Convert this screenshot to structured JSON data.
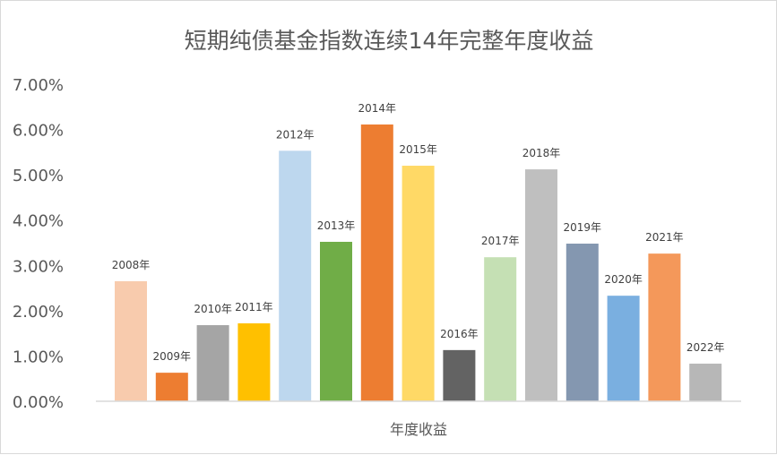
{
  "chart_data": {
    "type": "bar",
    "title": "短期纯债基金指数连续14年完整年度收益",
    "xlabel": "年度收益",
    "ylabel": "",
    "ylim": [
      0,
      7
    ],
    "yticks": [
      "0.00%",
      "1.00%",
      "2.00%",
      "3.00%",
      "4.00%",
      "5.00%",
      "6.00%",
      "7.00%"
    ],
    "grid": false,
    "legend": "none",
    "categories": [
      "2008年",
      "2009年",
      "2010年",
      "2011年",
      "2012年",
      "2013年",
      "2014年",
      "2015年",
      "2016年",
      "2017年",
      "2018年",
      "2019年",
      "2020年",
      "2021年",
      "2022年"
    ],
    "values": [
      2.65,
      0.63,
      1.68,
      1.72,
      5.53,
      3.52,
      6.11,
      5.2,
      1.13,
      3.18,
      5.12,
      3.48,
      2.33,
      3.26,
      0.83
    ],
    "unit": "%",
    "colors": [
      "#f8cbad",
      "#ed7d31",
      "#a5a5a5",
      "#ffc000",
      "#bdd7ee",
      "#70ad47",
      "#ed7d31",
      "#ffd966",
      "#636363",
      "#c5e0b4",
      "#bfbfbf",
      "#8497b0",
      "#7aafe0",
      "#f4985a",
      "#b7b7b7"
    ]
  }
}
